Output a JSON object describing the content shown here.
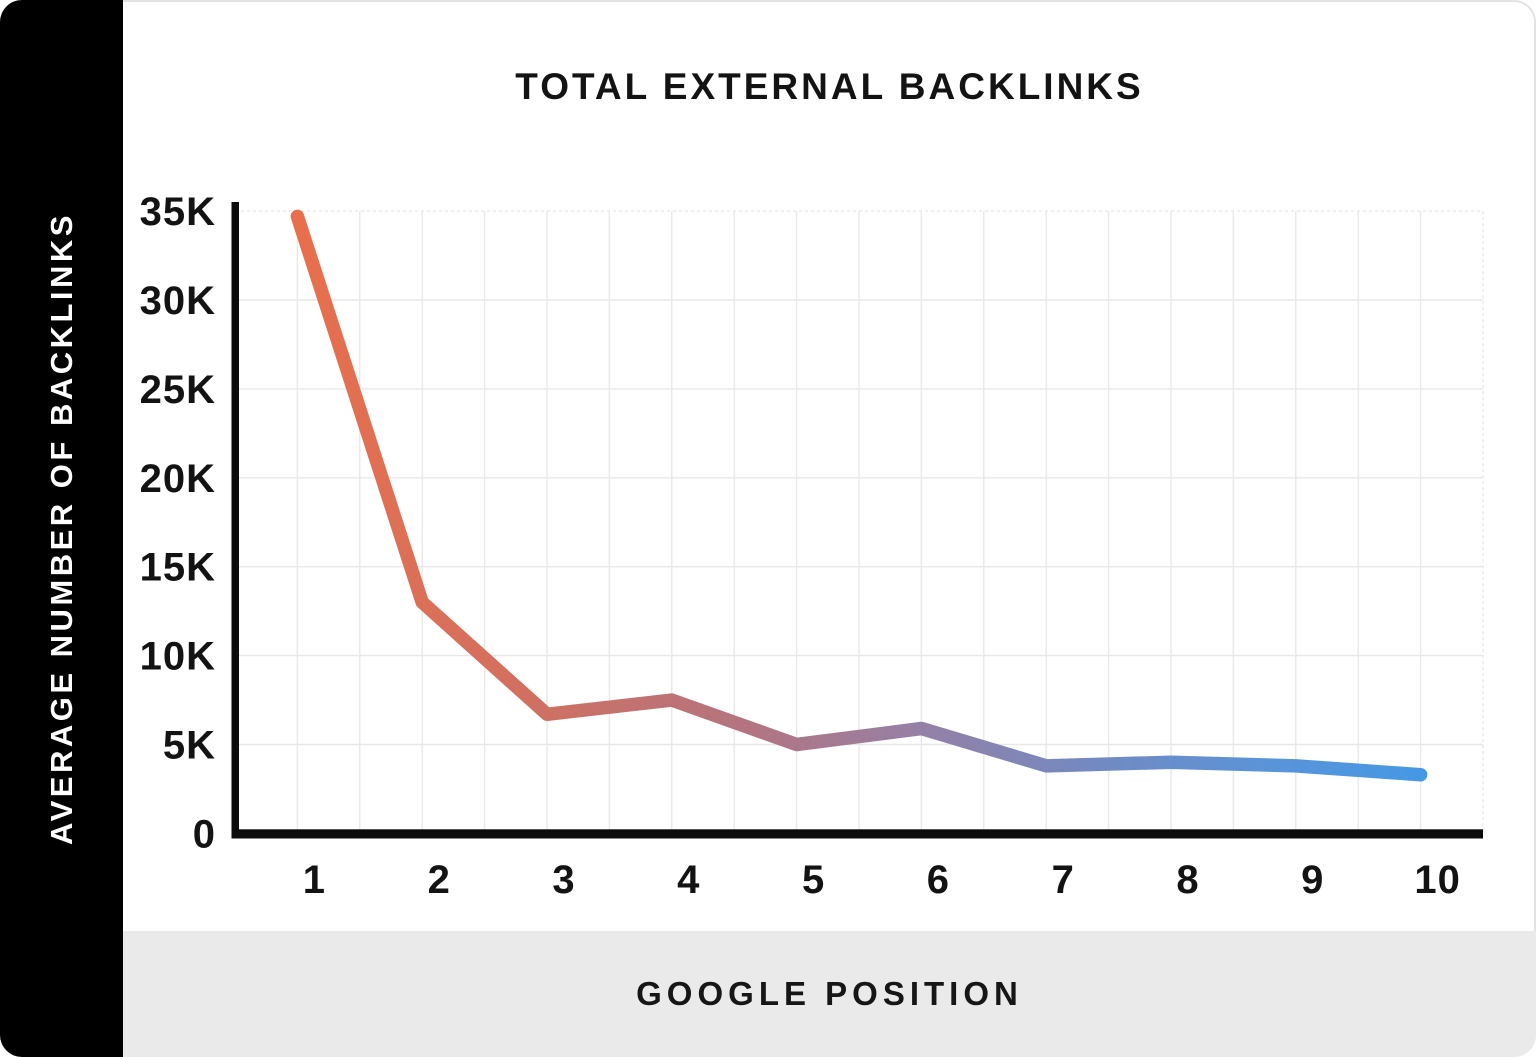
{
  "card": {
    "background": "#ffffff",
    "sidebar_background": "#000000",
    "band_background": "#eaeaea"
  },
  "sidebar": {
    "label": "AVERAGE NUMBER OF BACKLINKS"
  },
  "header": {
    "title": "TOTAL EXTERNAL BACKLINKS"
  },
  "footer": {
    "xaxis_label": "GOOGLE POSITION"
  },
  "chart_data": {
    "type": "line",
    "title": "TOTAL EXTERNAL BACKLINKS",
    "xlabel": "GOOGLE POSITION",
    "ylabel": "AVERAGE NUMBER OF BACKLINKS",
    "x": [
      1,
      2,
      3,
      4,
      5,
      6,
      7,
      8,
      9,
      10
    ],
    "values": [
      34700,
      13000,
      6700,
      7500,
      5000,
      5900,
      3800,
      4000,
      3800,
      3300
    ],
    "xtick_labels": [
      "1",
      "2",
      "3",
      "4",
      "5",
      "6",
      "7",
      "8",
      "9",
      "10"
    ],
    "ytick_labels": [
      "0",
      "5K",
      "10K",
      "15K",
      "20K",
      "25K",
      "30K",
      "35K"
    ],
    "ylim": [
      0,
      35000
    ],
    "ytick_step": 5000,
    "grid": true,
    "legend": false,
    "line_gradient_stops": [
      {
        "offset": 0.0,
        "color": "#E86F4D"
      },
      {
        "offset": 0.2,
        "color": "#D17060"
      },
      {
        "offset": 0.4,
        "color": "#B37480"
      },
      {
        "offset": 0.55,
        "color": "#9680A5"
      },
      {
        "offset": 0.7,
        "color": "#7489C0"
      },
      {
        "offset": 0.85,
        "color": "#5C93D6"
      },
      {
        "offset": 1.0,
        "color": "#4598E5"
      }
    ],
    "axis_color": "#0b0b0b",
    "grid_color": "#e8e8e8",
    "tick_label_color": "#131313"
  }
}
